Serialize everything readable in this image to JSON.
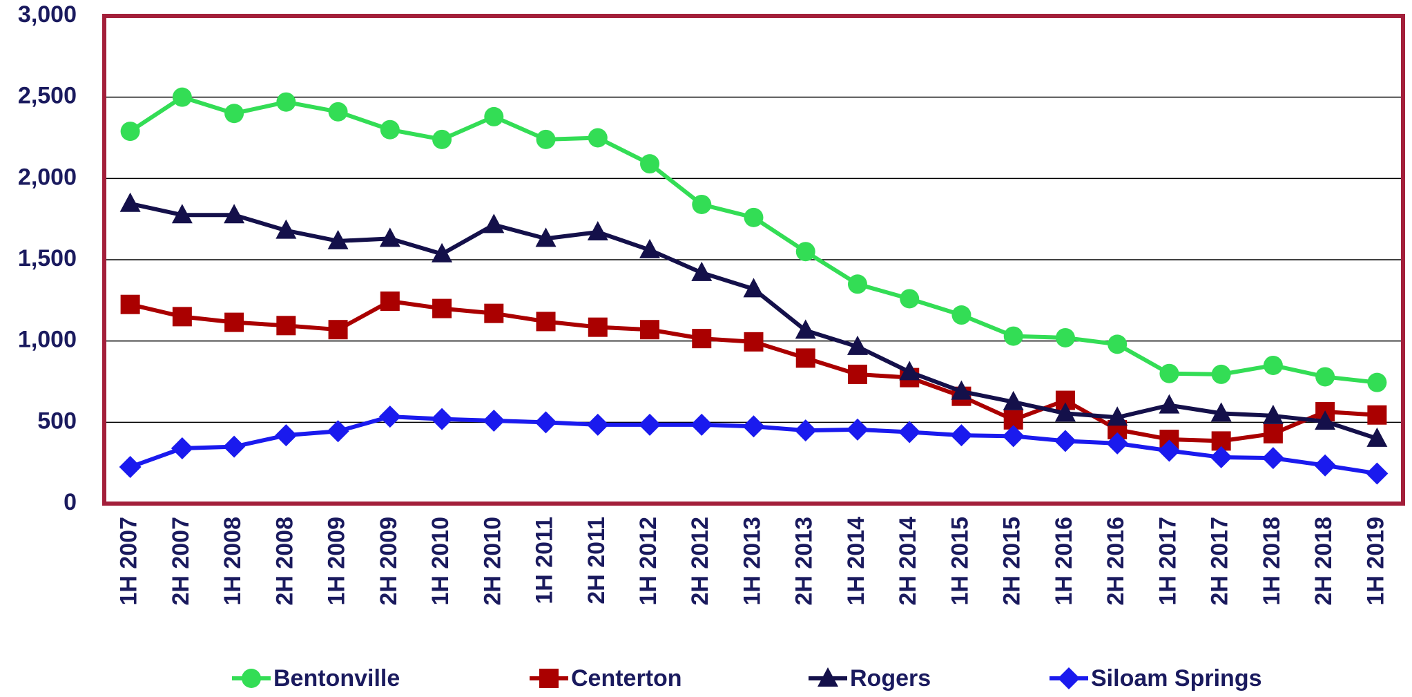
{
  "chart_data": {
    "type": "line",
    "categories": [
      "1H 2007",
      "2H 2007",
      "1H 2008",
      "2H 2008",
      "1H 2009",
      "2H 2009",
      "1H 2010",
      "2H 2010",
      "1H 2011",
      "2H 2011",
      "1H 2012",
      "2H 2012",
      "1H 2013",
      "2H 2013",
      "1H 2014",
      "2H 2014",
      "1H 2015",
      "2H 2015",
      "1H 2016",
      "2H 2016",
      "1H 2017",
      "2H 2017",
      "1H 2018",
      "2H 2018",
      "1H 2019"
    ],
    "series": [
      {
        "name": "Bentonville",
        "color": "#33dd55",
        "marker": "circle",
        "values": [
          2290,
          2500,
          2400,
          2470,
          2410,
          2300,
          2240,
          2380,
          2240,
          2250,
          2090,
          1840,
          1760,
          1550,
          1350,
          1260,
          1160,
          1030,
          1020,
          980,
          800,
          795,
          850,
          780,
          745
        ]
      },
      {
        "name": "Centerton",
        "color": "#aa0000",
        "marker": "square",
        "values": [
          1225,
          1150,
          1115,
          1095,
          1070,
          1245,
          1200,
          1170,
          1120,
          1085,
          1070,
          1015,
          995,
          895,
          795,
          775,
          660,
          515,
          635,
          455,
          395,
          385,
          430,
          565,
          545
        ]
      },
      {
        "name": "Rogers",
        "color": "#14104a",
        "marker": "triangle",
        "values": [
          1845,
          1775,
          1775,
          1680,
          1615,
          1630,
          1535,
          1715,
          1630,
          1670,
          1560,
          1420,
          1320,
          1065,
          965,
          810,
          690,
          625,
          555,
          530,
          605,
          555,
          540,
          505,
          400
        ]
      },
      {
        "name": "Siloam Springs",
        "color": "#1a1aee",
        "marker": "diamond",
        "values": [
          225,
          340,
          350,
          420,
          445,
          535,
          520,
          510,
          500,
          485,
          485,
          485,
          475,
          450,
          455,
          440,
          420,
          415,
          385,
          370,
          325,
          285,
          280,
          235,
          185
        ]
      }
    ],
    "ylim": [
      0,
      3000
    ],
    "yticks": [
      0,
      500,
      {
        "value": 1000,
        "label": "1,000"
      },
      {
        "value": 1500,
        "label": "1,500"
      },
      {
        "value": 2000,
        "label": "2,000"
      },
      {
        "value": 2500,
        "label": "2,500"
      },
      {
        "value": 3000,
        "label": "3,000"
      }
    ],
    "grid": true,
    "legend": "bottom"
  }
}
